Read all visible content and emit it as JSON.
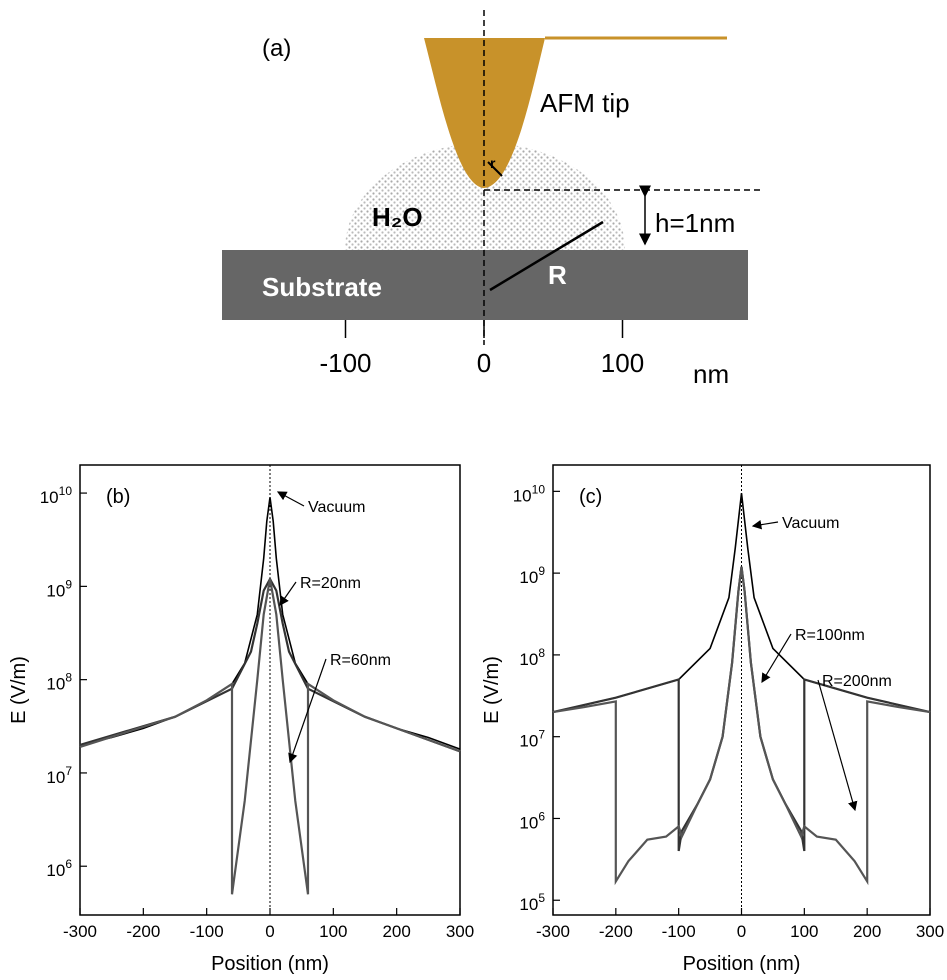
{
  "diagram": {
    "label": "(a)",
    "tip": "AFM tip",
    "tip_radius": "r",
    "water": "H₂O",
    "height": "h=1nm",
    "radius": "R",
    "substrate": "Substrate",
    "ticks": [
      -100,
      0,
      100
    ],
    "unit": "nm"
  },
  "chart_data": [
    {
      "type": "line",
      "panel": "(b)",
      "x_label": "Position (nm)",
      "y_label": "E (V/m)",
      "log_y": true,
      "xlim": [
        -300,
        300
      ],
      "xticks": [
        -300,
        -200,
        -100,
        0,
        100,
        200,
        300
      ],
      "ylim": [
        300000,
        20000000000
      ],
      "yticks": [
        {
          "value": 1000000,
          "label": "10^6"
        },
        {
          "value": 10000000,
          "label": "10^7"
        },
        {
          "value": 100000000,
          "label": "10^8"
        },
        {
          "value": 1000000000,
          "label": "10^9"
        },
        {
          "value": 10000000000,
          "label": "10^10"
        }
      ],
      "series": [
        {
          "name": "Vacuum",
          "color": "#000000",
          "x": [
            -300,
            -250,
            -200,
            -150,
            -100,
            -60,
            -40,
            -20,
            -10,
            -5,
            0,
            5,
            10,
            20,
            40,
            60,
            100,
            150,
            200,
            250,
            300
          ],
          "values": [
            20000000,
            24000000,
            30000000,
            40000000,
            60000000,
            90000000,
            150000000,
            500000000,
            2000000000,
            5000000000,
            9000000000,
            5000000000,
            2000000000,
            500000000,
            150000000,
            90000000,
            60000000,
            40000000,
            30000000,
            24000000,
            18000000
          ]
        },
        {
          "name": "R=20nm",
          "color": "#333333",
          "x": [
            -300,
            -150,
            -60,
            -30,
            -20,
            -10,
            0,
            10,
            20,
            30,
            60,
            150,
            300
          ],
          "values": [
            20000000,
            40000000,
            80000000,
            200000000,
            400000000,
            900000000,
            1200000000,
            900000000,
            400000000,
            200000000,
            80000000,
            40000000,
            17000000
          ]
        },
        {
          "name": "R=60nm",
          "color": "#555555",
          "x": [
            -300,
            -150,
            -100,
            -60,
            -60,
            -40,
            -20,
            -10,
            0,
            10,
            20,
            40,
            60,
            60,
            100,
            150,
            300
          ],
          "values": [
            19000000,
            40000000,
            60000000,
            90000000,
            500000,
            5000000,
            100000000,
            500000000,
            1200000000,
            500000000,
            100000000,
            5000000,
            500000,
            90000000,
            60000000,
            40000000,
            17000000
          ]
        }
      ]
    },
    {
      "type": "line",
      "panel": "(c)",
      "x_label": "Position (nm)",
      "y_label": "E (V/m)",
      "log_y": true,
      "xlim": [
        -300,
        300
      ],
      "xticks": [
        -300,
        -200,
        -100,
        0,
        100,
        200,
        300
      ],
      "ylim": [
        66000,
        21000000000
      ],
      "yticks": [
        {
          "value": 100000,
          "label": "10^5"
        },
        {
          "value": 1000000,
          "label": "10^6"
        },
        {
          "value": 10000000,
          "label": "10^7"
        },
        {
          "value": 100000000,
          "label": "10^8"
        },
        {
          "value": 1000000000,
          "label": "10^9"
        },
        {
          "value": 10000000000,
          "label": "10^10"
        }
      ],
      "series": [
        {
          "name": "Vacuum",
          "color": "#000000",
          "x": [
            -300,
            -200,
            -100,
            -50,
            -20,
            -10,
            0,
            10,
            20,
            50,
            100,
            200,
            300
          ],
          "values": [
            20000000,
            30000000,
            50000000,
            120000000,
            500000000,
            2000000000,
            9500000000,
            2000000000,
            500000000,
            120000000,
            50000000,
            30000000,
            20000000
          ]
        },
        {
          "name": "R=100nm",
          "color": "#333333",
          "x": [
            -300,
            -200,
            -100,
            -100,
            -95,
            -70,
            -50,
            -30,
            -15,
            -5,
            0,
            5,
            15,
            30,
            50,
            70,
            95,
            100,
            100,
            200,
            300
          ],
          "values": [
            20000000,
            30000000,
            50000000,
            400000,
            700000,
            1500000,
            3000000,
            10000000,
            80000000,
            600000000,
            1200000000,
            600000000,
            80000000,
            10000000,
            3000000,
            1500000,
            700000,
            400000,
            50000000,
            30000000,
            20000000
          ]
        },
        {
          "name": "R=200nm",
          "color": "#555555",
          "x": [
            -300,
            -250,
            -200,
            -200,
            -180,
            -150,
            -120,
            -100,
            -95,
            -70,
            -50,
            -30,
            -15,
            -5,
            0,
            5,
            15,
            30,
            50,
            70,
            95,
            100,
            120,
            150,
            180,
            200,
            200,
            250,
            300
          ],
          "values": [
            20000000,
            23000000,
            27000000,
            170000,
            300000,
            550000,
            600000,
            800000,
            600000,
            1500000,
            3000000,
            10000000,
            80000000,
            600000000,
            1200000000,
            600000000,
            80000000,
            10000000,
            3000000,
            1500000,
            600000,
            800000,
            600000,
            550000,
            300000,
            170000,
            27000000,
            23000000,
            20000000
          ]
        }
      ]
    }
  ]
}
